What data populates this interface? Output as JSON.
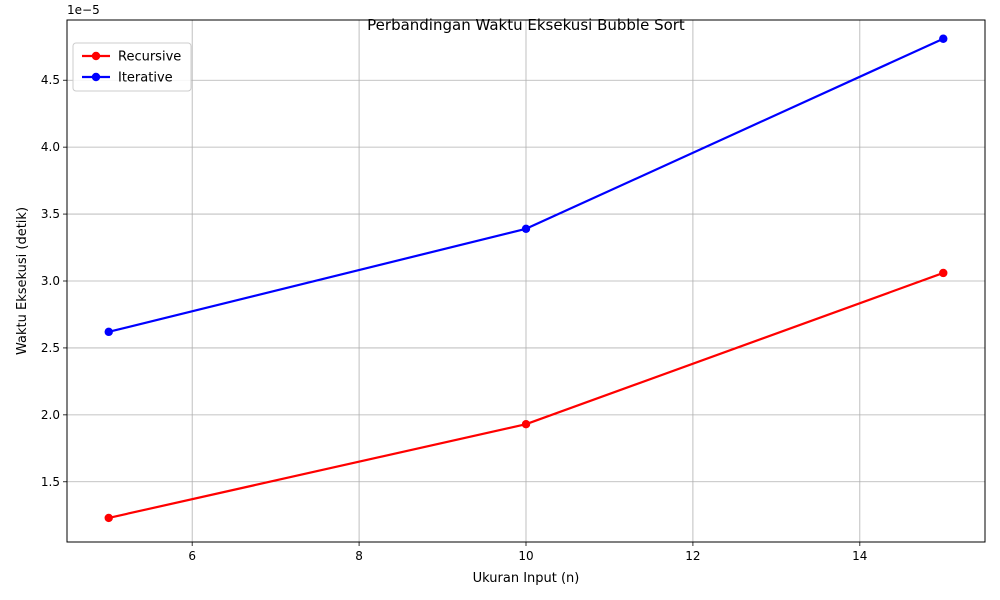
{
  "chart_data": {
    "type": "line",
    "title": "Perbandingan Waktu Eksekusi Bubble Sort",
    "xlabel": "Ukuran Input (n)",
    "ylabel": "Waktu Eksekusi (detik)",
    "y_offset_text": "1e−5",
    "y_scale_exponent": -5,
    "x": [
      5,
      10,
      15
    ],
    "xlim": [
      4.5,
      15.5
    ],
    "ylim": [
      1.05,
      4.95
    ],
    "x_ticks": [
      6,
      8,
      10,
      12,
      14
    ],
    "y_ticks": [
      1.5,
      2.0,
      2.5,
      3.0,
      3.5,
      4.0,
      4.5
    ],
    "grid": true,
    "legend_position": "top-left",
    "series": [
      {
        "name": "Recursive",
        "values": [
          1.23,
          1.93,
          3.06
        ],
        "color": "#ff0000"
      },
      {
        "name": "Iterative",
        "values": [
          2.62,
          3.39,
          4.81
        ],
        "color": "#0000ff"
      }
    ]
  }
}
